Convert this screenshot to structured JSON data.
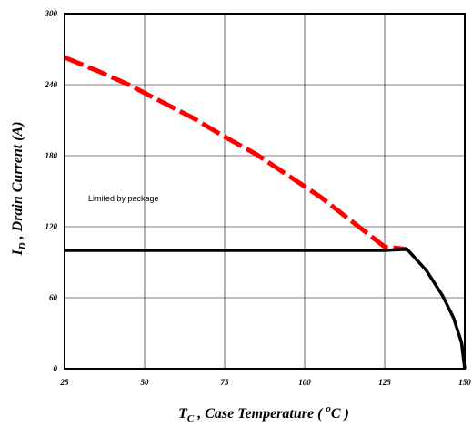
{
  "chart_data": {
    "type": "line",
    "xlim": [
      25,
      150
    ],
    "ylim": [
      0,
      300
    ],
    "x_ticks": [
      "25",
      "50",
      "75",
      "100",
      "125",
      "150"
    ],
    "y_ticks": [
      "0",
      "60",
      "120",
      "180",
      "240",
      "300"
    ],
    "grid": true,
    "xlabel": {
      "main": "T",
      "sub": "C",
      "rest": " , Case Temperature ( ",
      "sup": "o",
      "end": "C )"
    },
    "ylabel": {
      "main": "I",
      "sub": "D",
      "rest": " , Drain Current (A)"
    },
    "annotation": "Limited by package",
    "colors": {
      "red_series": "#ff0000",
      "black_series": "#000000",
      "grid": "#000000"
    },
    "series": [
      {
        "style": "dashed",
        "color": "#ff0000",
        "x": [
          25,
          35,
          45,
          55,
          65,
          75,
          85,
          95,
          105,
          115,
          125,
          132
        ],
        "y": [
          263,
          252,
          240,
          226,
          212,
          196,
          181,
          163,
          145,
          124,
          103,
          101
        ]
      },
      {
        "style": "solid",
        "color": "#000000",
        "x": [
          25,
          50,
          75,
          100,
          125,
          132,
          138,
          143,
          146.5,
          149,
          150
        ],
        "y": [
          100,
          100,
          100,
          100,
          100,
          101,
          83,
          62,
          43,
          22,
          0
        ]
      }
    ]
  }
}
